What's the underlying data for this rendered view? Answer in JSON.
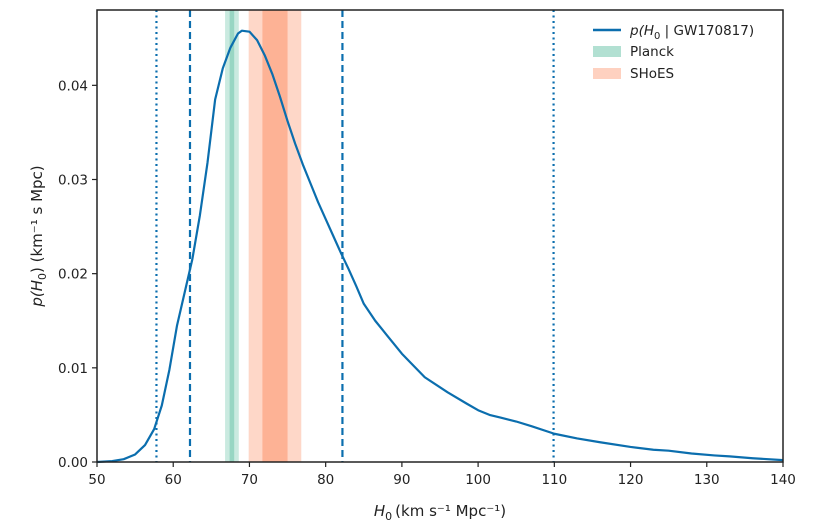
{
  "chart_data": {
    "type": "line",
    "title": "",
    "xlabel": "H",
    "xlabel_sub": "0",
    "xlabel_unit": "(km s⁻¹ Mpc⁻¹)",
    "ylabel_fn": "p(H",
    "ylabel_sub": "0",
    "ylabel_unit": ") (km⁻¹ s Mpc)",
    "xlim": [
      50,
      140
    ],
    "ylim": [
      0,
      0.048
    ],
    "xticks": [
      50,
      60,
      70,
      80,
      90,
      100,
      110,
      120,
      130,
      140
    ],
    "xtick_labels": [
      "50",
      "60",
      "70",
      "80",
      "90",
      "100",
      "110",
      "120",
      "130",
      "140"
    ],
    "yticks": [
      0,
      0.01,
      0.02,
      0.03,
      0.04
    ],
    "ytick_labels": [
      "0.00",
      "0.01",
      "0.02",
      "0.03",
      "0.04"
    ],
    "series": [
      {
        "name": "p(H0 | GW170817)",
        "color": "#0b6eae",
        "x": [
          50,
          52,
          53.5,
          55,
          56.3,
          57.5,
          58.5,
          59.5,
          60.5,
          61.5,
          62.5,
          63.5,
          64.5,
          65.5,
          66.5,
          67.5,
          68.5,
          69,
          70,
          71,
          72,
          73,
          74,
          75,
          76,
          77,
          78,
          79,
          80,
          81,
          82,
          83,
          84,
          85,
          86.5,
          88,
          90,
          93,
          96,
          98.5,
          100,
          101.5,
          103,
          105,
          107,
          110,
          113,
          116,
          120,
          123,
          125,
          128,
          131,
          133,
          136,
          140
        ],
        "values": [
          0.0,
          0.0001,
          0.0003,
          0.0008,
          0.0018,
          0.0035,
          0.006,
          0.0098,
          0.0145,
          0.018,
          0.0215,
          0.0262,
          0.0318,
          0.0385,
          0.0418,
          0.044,
          0.0455,
          0.0458,
          0.0457,
          0.0448,
          0.0432,
          0.0412,
          0.0388,
          0.0362,
          0.0338,
          0.0316,
          0.0296,
          0.0276,
          0.0258,
          0.024,
          0.0222,
          0.0205,
          0.0187,
          0.0168,
          0.015,
          0.0135,
          0.0115,
          0.009,
          0.0074,
          0.0062,
          0.0055,
          0.005,
          0.0047,
          0.0043,
          0.0038,
          0.003,
          0.0025,
          0.0021,
          0.0016,
          0.0013,
          0.0012,
          0.0009,
          0.0007,
          0.0006,
          0.0004,
          0.0002
        ]
      }
    ],
    "bands": [
      {
        "name": "Planck",
        "color": "#66c2a5",
        "inner": [
          67.4,
          68.0
        ],
        "outer": [
          66.8,
          68.6
        ]
      },
      {
        "name": "SHoES",
        "color": "#fc8d62",
        "inner": [
          71.7,
          75.0
        ],
        "outer": [
          69.9,
          76.8
        ]
      }
    ],
    "vlines": [
      {
        "x": 57.8,
        "style": "dotted"
      },
      {
        "x": 62.2,
        "style": "dashed"
      },
      {
        "x": 82.2,
        "style": "dashed"
      },
      {
        "x": 109.9,
        "style": "dotted"
      }
    ],
    "legend": {
      "position": "top-right",
      "entries": [
        {
          "label_fn": "p(H",
          "label_sub": "0",
          "label_rest": " | GW170817)",
          "color": "#0b6eae",
          "kind": "line"
        },
        {
          "label": "Planck",
          "color": "#66c2a5",
          "kind": "patch"
        },
        {
          "label": "SHoES",
          "color": "#fc8d62",
          "kind": "patch"
        }
      ]
    },
    "grid": false
  }
}
